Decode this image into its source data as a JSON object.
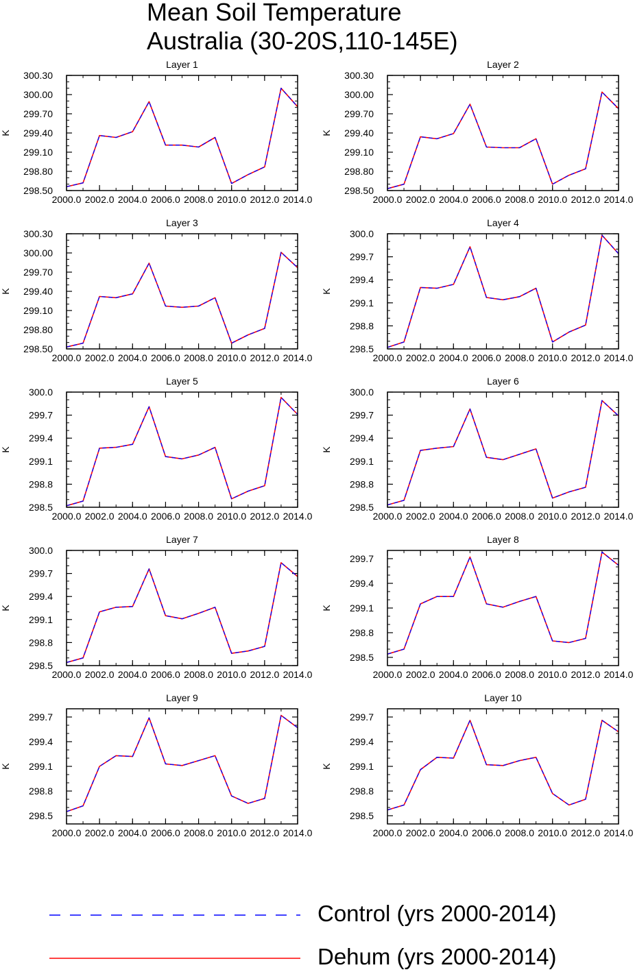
{
  "figure": {
    "title_lines": [
      "Mean Soil Temperature",
      "Australia (30-20S,110-145E)"
    ],
    "colors": {
      "control": "#0000ff",
      "dehum": "#ff0000",
      "axis": "#000000"
    }
  },
  "legend": {
    "entries": [
      {
        "label": "Control (yrs 2000-2014)",
        "color": "#0000ff",
        "style": "dashed"
      },
      {
        "label": "Dehum (yrs 2000-2014)",
        "color": "#ff0000",
        "style": "solid"
      }
    ]
  },
  "chart_data": [
    {
      "type": "line",
      "title": "Layer 1",
      "ylabel": "K",
      "x": [
        2000,
        2001,
        2002,
        2003,
        2004,
        2005,
        2006,
        2007,
        2008,
        2009,
        2010,
        2011,
        2012,
        2013,
        2014
      ],
      "xticks": [
        "2000.0",
        "2002.0",
        "2004.0",
        "2006.0",
        "2008.0",
        "2010.0",
        "2012.0",
        "2014.0"
      ],
      "xlim": [
        2000,
        2014
      ],
      "ylim": [
        298.5,
        300.3
      ],
      "yticks": [
        "298.50",
        "298.80",
        "299.10",
        "299.40",
        "299.70",
        "300.00",
        "300.30"
      ],
      "series": [
        {
          "name": "Control (yrs 2000-2014)",
          "color": "#0000ff",
          "style": "dashed",
          "values": [
            298.56,
            298.62,
            299.36,
            299.33,
            299.42,
            299.89,
            299.21,
            299.21,
            299.18,
            299.33,
            298.61,
            298.75,
            298.87,
            300.1,
            299.81
          ]
        },
        {
          "name": "Dehum (yrs 2000-2014)",
          "color": "#ff0000",
          "style": "solid",
          "values": [
            298.56,
            298.62,
            299.36,
            299.33,
            299.42,
            299.89,
            299.21,
            299.21,
            299.18,
            299.33,
            298.61,
            298.75,
            298.87,
            300.1,
            299.81
          ]
        }
      ]
    },
    {
      "type": "line",
      "title": "Layer 2",
      "ylabel": "K",
      "x": [
        2000,
        2001,
        2002,
        2003,
        2004,
        2005,
        2006,
        2007,
        2008,
        2009,
        2010,
        2011,
        2012,
        2013,
        2014
      ],
      "xticks": [
        "2000.0",
        "2002.0",
        "2004.0",
        "2006.0",
        "2008.0",
        "2010.0",
        "2012.0",
        "2014.0"
      ],
      "xlim": [
        2000,
        2014
      ],
      "ylim": [
        298.5,
        300.3
      ],
      "yticks": [
        "298.50",
        "298.80",
        "299.10",
        "299.40",
        "299.70",
        "300.00",
        "300.30"
      ],
      "series": [
        {
          "name": "Control (yrs 2000-2014)",
          "color": "#0000ff",
          "style": "dashed",
          "values": [
            298.53,
            298.6,
            299.34,
            299.31,
            299.39,
            299.85,
            299.18,
            299.17,
            299.17,
            299.31,
            298.6,
            298.74,
            298.84,
            300.04,
            299.78
          ]
        },
        {
          "name": "Dehum (yrs 2000-2014)",
          "color": "#ff0000",
          "style": "solid",
          "values": [
            298.53,
            298.6,
            299.34,
            299.31,
            299.39,
            299.85,
            299.18,
            299.17,
            299.17,
            299.31,
            298.6,
            298.74,
            298.84,
            300.04,
            299.78
          ]
        }
      ]
    },
    {
      "type": "line",
      "title": "Layer 3",
      "ylabel": "K",
      "x": [
        2000,
        2001,
        2002,
        2003,
        2004,
        2005,
        2006,
        2007,
        2008,
        2009,
        2010,
        2011,
        2012,
        2013,
        2014
      ],
      "xticks": [
        "2000.0",
        "2002.0",
        "2004.0",
        "2006.0",
        "2008.0",
        "2010.0",
        "2012.0",
        "2014.0"
      ],
      "xlim": [
        2000,
        2014
      ],
      "ylim": [
        298.5,
        300.3
      ],
      "yticks": [
        "298.50",
        "298.80",
        "299.10",
        "299.40",
        "299.70",
        "300.00",
        "300.30"
      ],
      "series": [
        {
          "name": "Control (yrs 2000-2014)",
          "color": "#0000ff",
          "style": "dashed",
          "values": [
            298.53,
            298.59,
            299.32,
            299.3,
            299.36,
            299.84,
            299.17,
            299.15,
            299.17,
            299.3,
            298.59,
            298.72,
            298.82,
            300.01,
            299.77
          ]
        },
        {
          "name": "Dehum (yrs 2000-2014)",
          "color": "#ff0000",
          "style": "solid",
          "values": [
            298.53,
            298.59,
            299.32,
            299.3,
            299.36,
            299.84,
            299.17,
            299.15,
            299.17,
            299.3,
            298.59,
            298.72,
            298.82,
            300.01,
            299.77
          ]
        }
      ]
    },
    {
      "type": "line",
      "title": "Layer 4",
      "ylabel": "K",
      "x": [
        2000,
        2001,
        2002,
        2003,
        2004,
        2005,
        2006,
        2007,
        2008,
        2009,
        2010,
        2011,
        2012,
        2013,
        2014
      ],
      "xticks": [
        "2000.0",
        "2002.0",
        "2004.0",
        "2006.0",
        "2008.0",
        "2010.0",
        "2012.0",
        "2014.0"
      ],
      "xlim": [
        2000,
        2014
      ],
      "ylim": [
        298.5,
        300.0
      ],
      "yticks": [
        "298.5",
        "298.8",
        "299.1",
        "299.4",
        "299.7",
        "300.0"
      ],
      "series": [
        {
          "name": "Control (yrs 2000-2014)",
          "color": "#0000ff",
          "style": "dashed",
          "values": [
            298.52,
            298.59,
            299.3,
            299.29,
            299.34,
            299.83,
            299.17,
            299.14,
            299.18,
            299.29,
            298.59,
            298.72,
            298.81,
            299.98,
            299.74
          ]
        },
        {
          "name": "Dehum (yrs 2000-2014)",
          "color": "#ff0000",
          "style": "solid",
          "values": [
            298.52,
            298.59,
            299.3,
            299.29,
            299.34,
            299.83,
            299.17,
            299.14,
            299.18,
            299.29,
            298.59,
            298.72,
            298.81,
            299.98,
            299.74
          ]
        }
      ]
    },
    {
      "type": "line",
      "title": "Layer 5",
      "ylabel": "K",
      "x": [
        2000,
        2001,
        2002,
        2003,
        2004,
        2005,
        2006,
        2007,
        2008,
        2009,
        2010,
        2011,
        2012,
        2013,
        2014
      ],
      "xticks": [
        "2000.0",
        "2002.0",
        "2004.0",
        "2006.0",
        "2008.0",
        "2010.0",
        "2012.0",
        "2014.0"
      ],
      "xlim": [
        2000,
        2014
      ],
      "ylim": [
        298.5,
        300.0
      ],
      "yticks": [
        "298.5",
        "298.8",
        "299.1",
        "299.4",
        "299.7",
        "300.0"
      ],
      "series": [
        {
          "name": "Control (yrs 2000-2014)",
          "color": "#0000ff",
          "style": "dashed",
          "values": [
            298.52,
            298.58,
            299.27,
            299.28,
            299.32,
            299.81,
            299.16,
            299.13,
            299.18,
            299.28,
            298.61,
            298.71,
            298.78,
            299.93,
            299.71
          ]
        },
        {
          "name": "Dehum (yrs 2000-2014)",
          "color": "#ff0000",
          "style": "solid",
          "values": [
            298.52,
            298.58,
            299.27,
            299.28,
            299.32,
            299.81,
            299.16,
            299.13,
            299.18,
            299.28,
            298.61,
            298.71,
            298.78,
            299.93,
            299.71
          ]
        }
      ]
    },
    {
      "type": "line",
      "title": "Layer 6",
      "ylabel": "K",
      "x": [
        2000,
        2001,
        2002,
        2003,
        2004,
        2005,
        2006,
        2007,
        2008,
        2009,
        2010,
        2011,
        2012,
        2013,
        2014
      ],
      "xticks": [
        "2000.0",
        "2002.0",
        "2004.0",
        "2006.0",
        "2008.0",
        "2010.0",
        "2012.0",
        "2014.0"
      ],
      "xlim": [
        2000,
        2014
      ],
      "ylim": [
        298.5,
        300.0
      ],
      "yticks": [
        "298.5",
        "298.8",
        "299.1",
        "299.4",
        "299.7",
        "300.0"
      ],
      "series": [
        {
          "name": "Control (yrs 2000-2014)",
          "color": "#0000ff",
          "style": "dashed",
          "values": [
            298.53,
            298.59,
            299.24,
            299.27,
            299.29,
            299.78,
            299.15,
            299.12,
            299.19,
            299.26,
            298.62,
            298.7,
            298.76,
            299.89,
            299.69
          ]
        },
        {
          "name": "Dehum (yrs 2000-2014)",
          "color": "#ff0000",
          "style": "solid",
          "values": [
            298.53,
            298.59,
            299.24,
            299.27,
            299.29,
            299.78,
            299.15,
            299.12,
            299.19,
            299.26,
            298.62,
            298.7,
            298.76,
            299.89,
            299.69
          ]
        }
      ]
    },
    {
      "type": "line",
      "title": "Layer 7",
      "ylabel": "K",
      "x": [
        2000,
        2001,
        2002,
        2003,
        2004,
        2005,
        2006,
        2007,
        2008,
        2009,
        2010,
        2011,
        2012,
        2013,
        2014
      ],
      "xticks": [
        "2000.0",
        "2002.0",
        "2004.0",
        "2006.0",
        "2008.0",
        "2010.0",
        "2012.0",
        "2014.0"
      ],
      "xlim": [
        2000,
        2014
      ],
      "ylim": [
        298.5,
        300.0
      ],
      "yticks": [
        "298.5",
        "298.8",
        "299.1",
        "299.4",
        "299.7",
        "300.0"
      ],
      "series": [
        {
          "name": "Control (yrs 2000-2014)",
          "color": "#0000ff",
          "style": "dashed",
          "values": [
            298.54,
            298.6,
            299.2,
            299.26,
            299.27,
            299.76,
            299.15,
            299.11,
            299.18,
            299.26,
            298.66,
            298.69,
            298.75,
            299.84,
            299.66
          ]
        },
        {
          "name": "Dehum (yrs 2000-2014)",
          "color": "#ff0000",
          "style": "solid",
          "values": [
            298.54,
            298.6,
            299.2,
            299.26,
            299.27,
            299.76,
            299.15,
            299.11,
            299.18,
            299.26,
            298.66,
            298.69,
            298.75,
            299.84,
            299.66
          ]
        }
      ]
    },
    {
      "type": "line",
      "title": "Layer 8",
      "ylabel": "K",
      "x": [
        2000,
        2001,
        2002,
        2003,
        2004,
        2005,
        2006,
        2007,
        2008,
        2009,
        2010,
        2011,
        2012,
        2013,
        2014
      ],
      "xticks": [
        "2000.0",
        "2002.0",
        "2004.0",
        "2006.0",
        "2008.0",
        "2010.0",
        "2012.0",
        "2014.0"
      ],
      "xlim": [
        2000,
        2014
      ],
      "ylim": [
        298.4,
        299.8
      ],
      "yticks": [
        "298.5",
        "298.8",
        "299.1",
        "299.4",
        "299.7"
      ],
      "series": [
        {
          "name": "Control (yrs 2000-2014)",
          "color": "#0000ff",
          "style": "dashed",
          "values": [
            298.54,
            298.6,
            299.15,
            299.24,
            299.24,
            299.72,
            299.15,
            299.11,
            299.18,
            299.24,
            298.7,
            298.68,
            298.73,
            299.78,
            299.62
          ]
        },
        {
          "name": "Dehum (yrs 2000-2014)",
          "color": "#ff0000",
          "style": "solid",
          "values": [
            298.54,
            298.6,
            299.15,
            299.24,
            299.24,
            299.72,
            299.15,
            299.11,
            299.18,
            299.24,
            298.7,
            298.68,
            298.73,
            299.78,
            299.62
          ]
        }
      ]
    },
    {
      "type": "line",
      "title": "Layer 9",
      "ylabel": "K",
      "x": [
        2000,
        2001,
        2002,
        2003,
        2004,
        2005,
        2006,
        2007,
        2008,
        2009,
        2010,
        2011,
        2012,
        2013,
        2014
      ],
      "xticks": [
        "2000.0",
        "2002.0",
        "2004.0",
        "2006.0",
        "2008.0",
        "2010.0",
        "2012.0",
        "2014.0"
      ],
      "xlim": [
        2000,
        2014
      ],
      "ylim": [
        298.4,
        299.8
      ],
      "yticks": [
        "298.5",
        "298.8",
        "299.1",
        "299.4",
        "299.7"
      ],
      "series": [
        {
          "name": "Control (yrs 2000-2014)",
          "color": "#0000ff",
          "style": "dashed",
          "values": [
            298.55,
            298.62,
            299.1,
            299.23,
            299.22,
            299.69,
            299.13,
            299.11,
            299.17,
            299.23,
            298.74,
            298.65,
            298.71,
            299.72,
            299.57
          ]
        },
        {
          "name": "Dehum (yrs 2000-2014)",
          "color": "#ff0000",
          "style": "solid",
          "values": [
            298.55,
            298.62,
            299.1,
            299.23,
            299.22,
            299.69,
            299.13,
            299.11,
            299.17,
            299.23,
            298.74,
            298.65,
            298.71,
            299.72,
            299.57
          ]
        }
      ]
    },
    {
      "type": "line",
      "title": "Layer 10",
      "ylabel": "K",
      "x": [
        2000,
        2001,
        2002,
        2003,
        2004,
        2005,
        2006,
        2007,
        2008,
        2009,
        2010,
        2011,
        2012,
        2013,
        2014
      ],
      "xticks": [
        "2000.0",
        "2002.0",
        "2004.0",
        "2006.0",
        "2008.0",
        "2010.0",
        "2012.0",
        "2014.0"
      ],
      "xlim": [
        2000,
        2014
      ],
      "ylim": [
        298.4,
        299.8
      ],
      "yticks": [
        "298.5",
        "298.8",
        "299.1",
        "299.4",
        "299.7"
      ],
      "series": [
        {
          "name": "Control (yrs 2000-2014)",
          "color": "#0000ff",
          "style": "dashed",
          "values": [
            298.57,
            298.63,
            299.06,
            299.21,
            299.2,
            299.66,
            299.12,
            299.11,
            299.17,
            299.21,
            298.77,
            298.63,
            298.7,
            299.66,
            299.52
          ]
        },
        {
          "name": "Dehum (yrs 2000-2014)",
          "color": "#ff0000",
          "style": "solid",
          "values": [
            298.57,
            298.63,
            299.06,
            299.21,
            299.2,
            299.66,
            299.12,
            299.11,
            299.17,
            299.21,
            298.77,
            298.63,
            298.7,
            299.66,
            299.52
          ]
        }
      ]
    }
  ]
}
